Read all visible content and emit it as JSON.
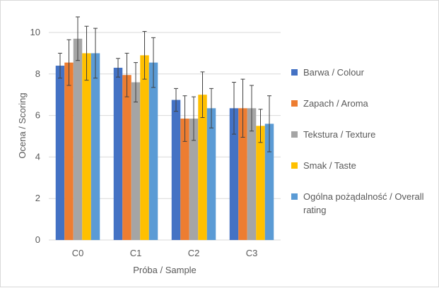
{
  "chart_data": {
    "type": "bar",
    "title": "",
    "xlabel": "Próba / Sample",
    "ylabel": "Ocena / Scoring",
    "ylim": [
      0,
      10
    ],
    "yticks": [
      0,
      2,
      4,
      6,
      8,
      10
    ],
    "grid": true,
    "legend_position": "right",
    "categories": [
      "C0",
      "C1",
      "C2",
      "C3"
    ],
    "series": [
      {
        "name": "Barwa / Colour",
        "color": "#4472c4",
        "values": [
          8.4,
          8.3,
          6.75,
          6.35
        ],
        "errors": [
          0.6,
          0.45,
          0.55,
          1.25
        ]
      },
      {
        "name": "Zapach / Aroma",
        "color": "#ed7d31",
        "values": [
          8.55,
          7.95,
          5.85,
          6.35
        ],
        "errors": [
          1.1,
          1.05,
          1.1,
          1.4
        ]
      },
      {
        "name": "Tekstura / Texture",
        "color": "#a5a5a5",
        "values": [
          9.7,
          7.6,
          5.85,
          6.35
        ],
        "errors": [
          1.05,
          0.95,
          1.05,
          1.1
        ]
      },
      {
        "name": "Smak / Taste",
        "color": "#ffc000",
        "values": [
          9.0,
          8.9,
          7.0,
          5.5
        ],
        "errors": [
          1.3,
          1.15,
          1.1,
          0.8
        ]
      },
      {
        "name": "Ogólna pożądalność / Overall rating",
        "color": "#5b9bd5",
        "values": [
          9.0,
          8.55,
          6.35,
          5.6
        ],
        "errors": [
          1.2,
          1.2,
          0.95,
          1.35
        ]
      }
    ]
  }
}
